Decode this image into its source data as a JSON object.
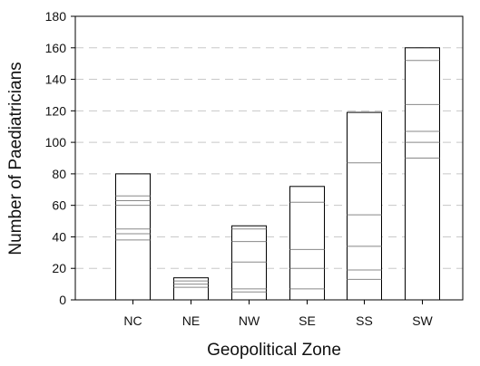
{
  "chart_data": {
    "type": "bar",
    "title": "",
    "xlabel": "Geopolitical Zone",
    "ylabel": "Number of Paediatricians",
    "categories": [
      "NC",
      "NE",
      "NW",
      "SE",
      "SS",
      "SW"
    ],
    "values": [
      80,
      14,
      47,
      72,
      119,
      160
    ],
    "segment_boundaries": [
      [
        38,
        42,
        45,
        60,
        63,
        66,
        80
      ],
      [
        8,
        10,
        12,
        14
      ],
      [
        5,
        7,
        24,
        37,
        45,
        47
      ],
      [
        7,
        20,
        32,
        62,
        72
      ],
      [
        13,
        19,
        34,
        54,
        87,
        119
      ],
      [
        90,
        100,
        107,
        124,
        152,
        160
      ]
    ],
    "ylim": [
      0,
      180
    ],
    "yticks": [
      0,
      20,
      40,
      60,
      80,
      100,
      120,
      140,
      160,
      180
    ],
    "grid": true,
    "grid_style": "dashed-horizontal",
    "legend": "none",
    "colors": {
      "bar_fill": "#ffffff",
      "bar_stroke": "#000000",
      "segment_line": "#888888",
      "grid": "#c8c8c8",
      "axis": "#000000"
    }
  }
}
